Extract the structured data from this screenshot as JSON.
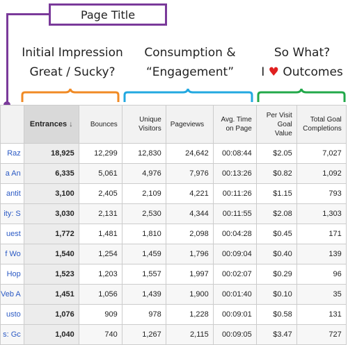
{
  "annotations": {
    "page_title": "Page Title",
    "initial_impression": [
      "Initial Impression",
      "Great / Sucky?"
    ],
    "consumption": [
      "Consumption &",
      "“Engagement”"
    ],
    "so_what": [
      "So What?",
      "I",
      "Outcomes"
    ],
    "colors": {
      "purple": "#7a3a9a",
      "orange": "#f08a24",
      "blue": "#22a8e0",
      "green": "#22a84a",
      "heart": "#e02020"
    }
  },
  "table": {
    "headers": {
      "entrances": "Entrances",
      "sort_icon": "down-arrow-icon",
      "bounces": "Bounces",
      "unique_visitors": [
        "Unique",
        "Visitors"
      ],
      "pageviews": "Pageviews",
      "avg_time": [
        "Avg. Time",
        "on Page"
      ],
      "per_visit_goal": [
        "Per Visit",
        "Goal",
        "Value"
      ],
      "total_goal": [
        "Total Goal",
        "Completions"
      ]
    },
    "rows": [
      {
        "page": "Raz",
        "entrances": "18,925",
        "bounces": "12,299",
        "unique": "12,830",
        "pageviews": "24,642",
        "avg_time": "00:08:44",
        "per_visit": "$2.05",
        "total_goal": "7,027"
      },
      {
        "page": "a An",
        "entrances": "6,335",
        "bounces": "5,061",
        "unique": "4,976",
        "pageviews": "7,976",
        "avg_time": "00:13:26",
        "per_visit": "$0.82",
        "total_goal": "1,092"
      },
      {
        "page": "antit",
        "entrances": "3,100",
        "bounces": "2,405",
        "unique": "2,109",
        "pageviews": "4,221",
        "avg_time": "00:11:26",
        "per_visit": "$1.15",
        "total_goal": "793"
      },
      {
        "page": "ity: S",
        "entrances": "3,030",
        "bounces": "2,131",
        "unique": "2,530",
        "pageviews": "4,344",
        "avg_time": "00:11:55",
        "per_visit": "$2.08",
        "total_goal": "1,303"
      },
      {
        "page": "uest",
        "entrances": "1,772",
        "bounces": "1,481",
        "unique": "1,810",
        "pageviews": "2,098",
        "avg_time": "00:04:28",
        "per_visit": "$0.45",
        "total_goal": "171"
      },
      {
        "page": "f Wo",
        "entrances": "1,540",
        "bounces": "1,254",
        "unique": "1,459",
        "pageviews": "1,796",
        "avg_time": "00:09:04",
        "per_visit": "$0.40",
        "total_goal": "139"
      },
      {
        "page": "Hop",
        "entrances": "1,523",
        "bounces": "1,203",
        "unique": "1,557",
        "pageviews": "1,997",
        "avg_time": "00:02:07",
        "per_visit": "$0.29",
        "total_goal": "96"
      },
      {
        "page": "Veb A",
        "entrances": "1,451",
        "bounces": "1,056",
        "unique": "1,439",
        "pageviews": "1,900",
        "avg_time": "00:01:40",
        "per_visit": "$0.10",
        "total_goal": "35"
      },
      {
        "page": "usto",
        "entrances": "1,076",
        "bounces": "909",
        "unique": "978",
        "pageviews": "1,228",
        "avg_time": "00:09:01",
        "per_visit": "$0.58",
        "total_goal": "131"
      },
      {
        "page": "s: Gc",
        "entrances": "1,040",
        "bounces": "740",
        "unique": "1,267",
        "pageviews": "2,115",
        "avg_time": "00:09:05",
        "per_visit": "$3.47",
        "total_goal": "727"
      }
    ]
  }
}
